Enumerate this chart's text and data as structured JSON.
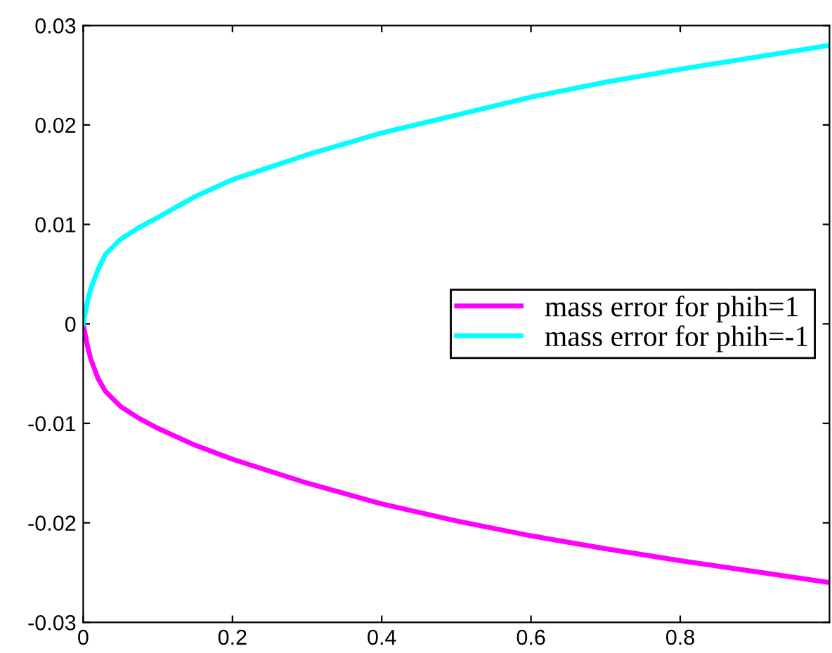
{
  "chart_data": {
    "type": "line",
    "x": [
      0,
      0.005,
      0.01,
      0.02,
      0.03,
      0.05,
      0.075,
      0.1,
      0.15,
      0.2,
      0.3,
      0.4,
      0.5,
      0.6,
      0.7,
      0.8,
      0.9,
      1.0
    ],
    "series": [
      {
        "name": "mass error for phih=1",
        "color": "#ff00ff",
        "values": [
          0,
          -0.002,
          -0.0035,
          -0.0055,
          -0.0068,
          -0.0083,
          -0.0095,
          -0.0105,
          -0.0122,
          -0.0136,
          -0.016,
          -0.0181,
          -0.0198,
          -0.0213,
          -0.0226,
          -0.0238,
          -0.0249,
          -0.026
        ]
      },
      {
        "name": "mass error for phih=-1",
        "color": "#00ffff",
        "values": [
          0,
          0.002,
          0.0035,
          0.0055,
          0.007,
          0.0085,
          0.0097,
          0.0107,
          0.0128,
          0.0145,
          0.017,
          0.0192,
          0.021,
          0.0228,
          0.0243,
          0.0256,
          0.0268,
          0.028
        ]
      }
    ],
    "xlim": [
      0,
      1
    ],
    "xticks": [
      0,
      0.2,
      0.4,
      0.6,
      0.8
    ],
    "ylim": [
      -0.03,
      0.03
    ],
    "yticks": [
      -0.03,
      -0.02,
      -0.01,
      0,
      0.01,
      0.02,
      0.03
    ],
    "grid": false,
    "legend": "right",
    "marker": "none",
    "line_style": "solid"
  }
}
